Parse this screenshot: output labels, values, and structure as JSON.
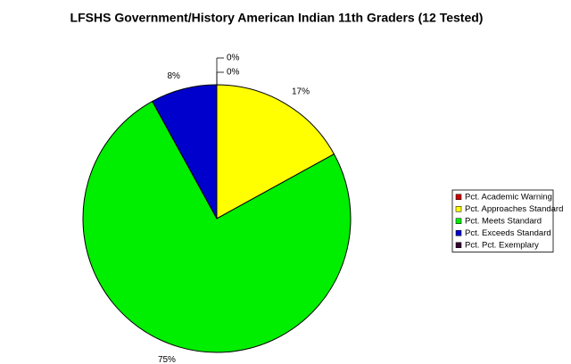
{
  "chart_data": {
    "type": "pie",
    "title": "LFSHS Government/History American Indian 11th Graders (12 Tested)",
    "categories": [
      "Pct. Academic Warning",
      "Pct. Approaches Standard",
      "Pct. Meets Standard",
      "Pct. Exceeds Standard",
      "Pct. Pct. Exemplary"
    ],
    "values": [
      0,
      17,
      75,
      8,
      0
    ],
    "value_labels": [
      "0%",
      "17%",
      "75%",
      "8%",
      "0%"
    ],
    "colors": [
      "#cc0000",
      "#ffff00",
      "#00ee00",
      "#0000cc",
      "#330033"
    ],
    "legend": "right"
  }
}
